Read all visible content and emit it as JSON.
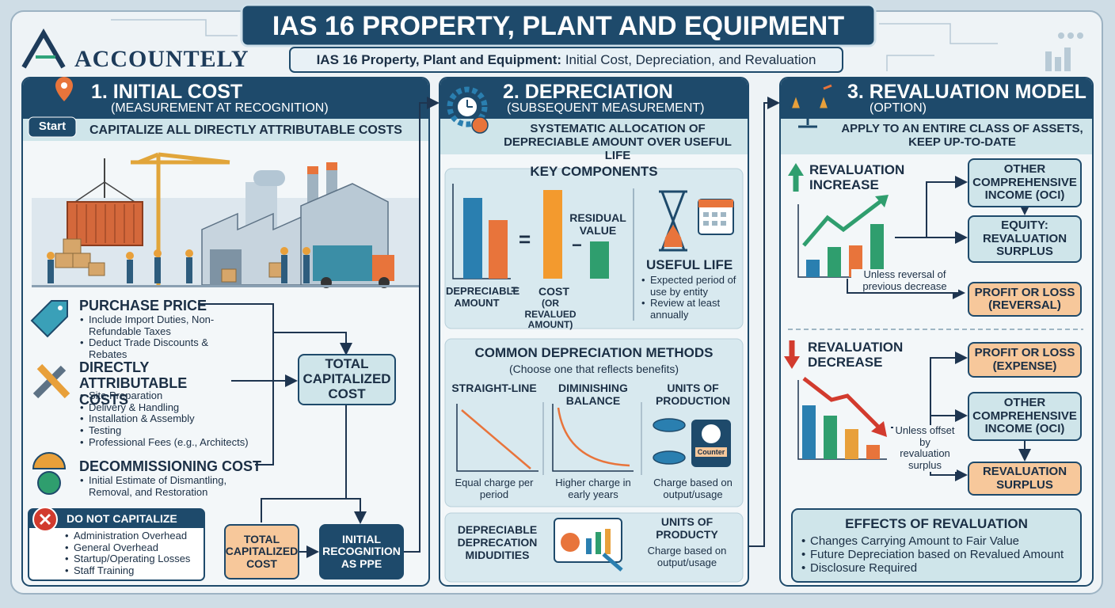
{
  "header": {
    "logo": "ACCOUNTELY",
    "title": "IAS 16 PROPERTY, PLANT AND EQUIPMENT",
    "subtitle_bold": "IAS 16 Property, Plant and Equipment:",
    "subtitle_rest": "Initial Cost, Depreciation, and Revaluation"
  },
  "initial_cost": {
    "heading": "1. INITIAL COST",
    "subheading": "(MEASUREMENT AT RECOGNITION)",
    "start": "Start",
    "banner": "CAPITALIZE ALL DIRECTLY ATTRIBUTABLE COSTS",
    "purchase_price": {
      "title": "PURCHASE PRICE",
      "bullets": [
        "Include Import Duties, Non-Refundable Taxes",
        "Deduct Trade Discounts & Rebates"
      ]
    },
    "directly_attributable": {
      "title": "DIRECTLY ATTRIBUTABLE COSTS",
      "bullets": [
        "Site Preparation",
        "Delivery & Handling",
        "Installation & Assembly",
        "Testing",
        "Professional Fees (e.g., Architects)"
      ]
    },
    "decommissioning": {
      "title": "DECOMMISSIONING COST",
      "bullets": [
        "Initial Estimate of Dismantling, Removal, and Restoration"
      ]
    },
    "total_box": "TOTAL CAPITALIZED COST",
    "do_not_capitalize": {
      "title": "DO NOT CAPITALIZE",
      "bullets": [
        "Administration Overhead",
        "General Overhead",
        "Startup/Operating Losses",
        "Staff Training"
      ]
    },
    "total_box_2": "TOTAL CAPITALIZED COST",
    "recognition_box": "INITIAL RECOGNITION AS PPE"
  },
  "depreciation": {
    "heading": "2. DEPRECIATION",
    "subheading": "(SUBSEQUENT MEASUREMENT)",
    "banner": "SYSTEMATIC ALLOCATION OF DEPRECIABLE AMOUNT OVER USEFUL LIFE",
    "key_components": {
      "title": "KEY COMPONENTS",
      "equals": "=",
      "residual": "RESIDUAL VALUE",
      "minus": "−",
      "formula_left": "DEPRECIABLE AMOUNT",
      "formula_equals": "=",
      "formula_right": "COST",
      "formula_note": "(OR REVALUED AMOUNT)",
      "useful_life": "USEFUL LIFE",
      "useful_life_bullets": [
        "Expected period of use by entity",
        "Review at least annually"
      ]
    },
    "methods": {
      "title": "COMMON DEPRECIATION METHODS",
      "subtitle": "(Choose one that reflects benefits)",
      "counter": "Counter",
      "items": [
        {
          "name": "STRAIGHT-LINE",
          "desc": "Equal charge per period"
        },
        {
          "name": "DIMINISHING BALANCE",
          "desc": "Higher charge in early years"
        },
        {
          "name": "UNITS OF PRODUCTION",
          "desc": "Charge based on output/usage"
        }
      ]
    },
    "bottom": {
      "left": "DEPRECIABLE DEPRECATION MIDUDITIES",
      "right_title": "UNITS OF PRODUCTY",
      "right_desc": "Charge based on output/usage"
    }
  },
  "revaluation": {
    "heading": "3. REVALUATION MODEL",
    "subheading": "(OPTION)",
    "banner": "APPLY TO AN ENTIRE CLASS OF ASSETS, KEEP UP-TO-DATE",
    "increase": {
      "title": "REVALUATION INCREASE",
      "oci": "OTHER COMPREHENSIVE INCOME (OCI)",
      "equity": "EQUITY: REVALUATION SURPLUS",
      "note": "Unless reversal of previous decrease",
      "profit_loss": "PROFIT OR LOSS (REVERSAL)"
    },
    "decrease": {
      "title": "REVALUATION DECREASE",
      "profit_loss": "PROFIT OR LOSS (EXPENSE)",
      "oci": "OTHER COMPREHENSIVE INCOME (OCI)",
      "note": "Unless offset by revaluation surplus",
      "surplus": "REVALUATION SURPLUS"
    },
    "effects": {
      "title": "EFFECTS OF REVALUATION",
      "bullets": [
        "Changes Carrying Amount to Fair Value",
        "Future Depreciation based on Revalued Amount",
        "Disclosure Required"
      ]
    }
  }
}
